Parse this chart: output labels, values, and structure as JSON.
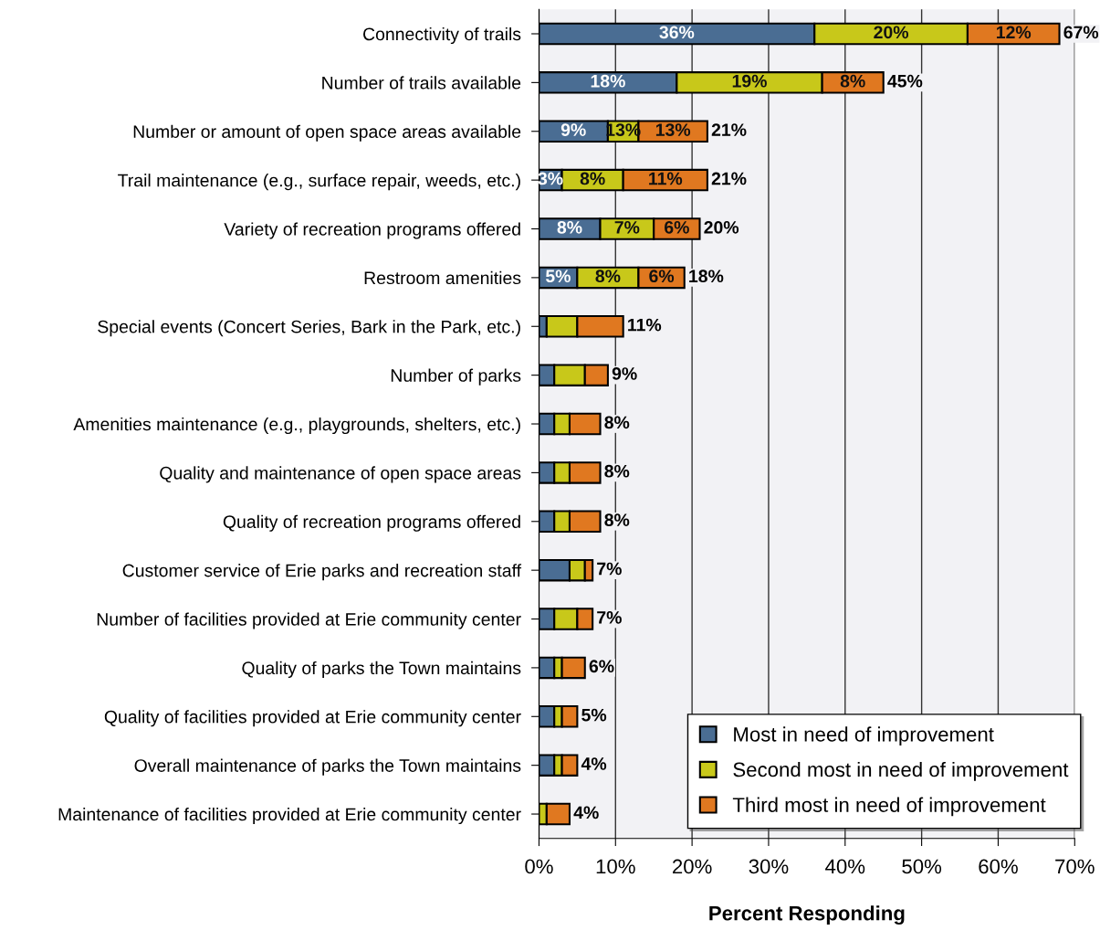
{
  "chart_data": {
    "type": "bar",
    "orientation": "horizontal",
    "stacked": true,
    "xlabel": "Percent Responding",
    "categories": [
      "Connectivity of trails",
      "Number of trails available",
      "Number or amount of open space areas available",
      "Trail maintenance (e.g., surface repair, weeds, etc.)",
      "Variety of recreation programs offered",
      "Restroom amenities",
      "Special events (Concert Series, Bark in the Park, etc.)",
      "Number of parks",
      "Amenities maintenance (e.g., playgrounds, shelters, etc.)",
      "Quality and maintenance of open space areas",
      "Quality of recreation programs offered",
      "Customer service of Erie parks and recreation staff",
      "Number of facilities provided at Erie community center",
      "Quality of parks the Town maintains",
      "Quality of facilities provided at Erie community center",
      "Overall maintenance of parks the Town maintains",
      "Maintenance of facilities provided at Erie community center"
    ],
    "series": [
      {
        "name": "Most in need of improvement",
        "color": "#4a6d93",
        "values": [
          36,
          18,
          9,
          3,
          8,
          5,
          1,
          2,
          2,
          2,
          2,
          4,
          2,
          2,
          2,
          2,
          0
        ],
        "value_labels": [
          "36%",
          "18%",
          "9%",
          "3%",
          "8%",
          "5%",
          null,
          null,
          null,
          null,
          null,
          null,
          null,
          null,
          null,
          null,
          null
        ]
      },
      {
        "name": "Second most in need of improvement",
        "color": "#c8c81a",
        "values": [
          20,
          19,
          4,
          8,
          7,
          8,
          4,
          4,
          2,
          2,
          2,
          2,
          3,
          1,
          1,
          1,
          1
        ],
        "value_labels": [
          "20%",
          "19%",
          null,
          "8%",
          "7%",
          "8%",
          null,
          null,
          null,
          null,
          null,
          null,
          null,
          null,
          null,
          null,
          null
        ]
      },
      {
        "name": "Third most in need of improvement",
        "color": "#e07820",
        "values": [
          12,
          8,
          9,
          11,
          6,
          6,
          6,
          3,
          4,
          4,
          4,
          1,
          2,
          3,
          2,
          2,
          3
        ],
        "value_labels": [
          "12%",
          "8%",
          null,
          "11%",
          "6%",
          "6%",
          null,
          null,
          null,
          null,
          null,
          null,
          null,
          null,
          null,
          null,
          null
        ]
      }
    ],
    "annotations": [
      "13%",
      "13%"
    ],
    "totals": [
      "67%",
      "45%",
      "21%",
      "21%",
      "20%",
      "18%",
      "11%",
      "9%",
      "8%",
      "8%",
      "8%",
      "7%",
      "7%",
      "6%",
      "5%",
      "4%",
      "4%"
    ],
    "xlim": [
      0,
      70
    ],
    "xticks": [
      {
        "value": 0,
        "label": "0%"
      },
      {
        "value": 10,
        "label": "10%"
      },
      {
        "value": 20,
        "label": "20%"
      },
      {
        "value": 30,
        "label": "30%"
      },
      {
        "value": 40,
        "label": "40%"
      },
      {
        "value": 50,
        "label": "50%"
      },
      {
        "value": 60,
        "label": "60%"
      },
      {
        "value": 70,
        "label": "70%"
      }
    ],
    "grid": "x",
    "legend": "bottom right"
  }
}
